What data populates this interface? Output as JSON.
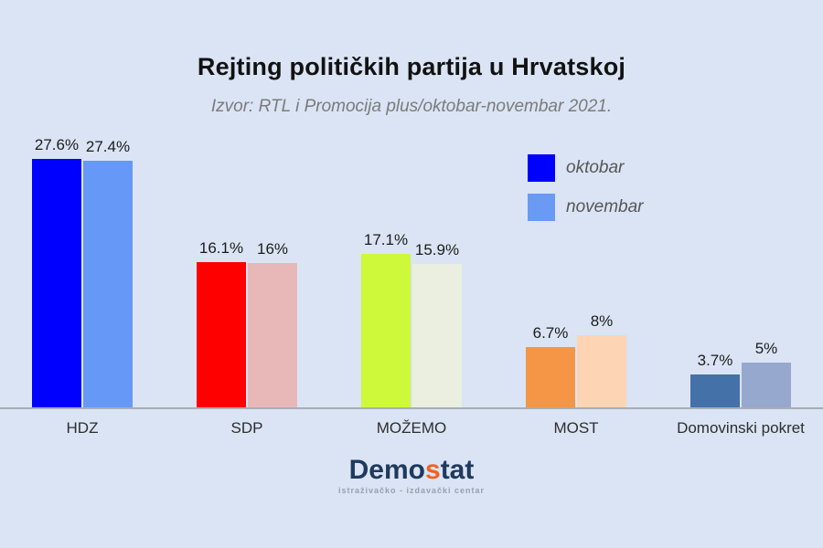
{
  "page": {
    "background_color": "#dae4f4",
    "axis_line_color": "#a8aeb6"
  },
  "chart_data": {
    "type": "bar",
    "title": "Rejting političkih partija u Hrvatskoj",
    "subtitle": "Izvor: RTL i Promocija plus/oktobar-novembar 2021.",
    "categories": [
      "HDZ",
      "SDP",
      "MOŽEMO",
      "MOST",
      "Domovinski pokret"
    ],
    "series": [
      {
        "name": "oktobar",
        "values": [
          27.6,
          16.1,
          17.1,
          6.7,
          3.7
        ],
        "value_labels": [
          "27.6%",
          "16.1%",
          "17.1%",
          "6.7%",
          "3.7%"
        ],
        "colors": [
          "#0000fe",
          "#fe0000",
          "#cdf93a",
          "#f49646",
          "#4472a8"
        ]
      },
      {
        "name": "novembar",
        "values": [
          27.4,
          16.0,
          15.9,
          8.0,
          5.0
        ],
        "value_labels": [
          "27.4%",
          "16%",
          "15.9%",
          "8%",
          "5%"
        ],
        "colors": [
          "#6699f7",
          "#e7b8b7",
          "#ebefdf",
          "#fdd5b4",
          "#97a8cf"
        ]
      }
    ],
    "legend": [
      {
        "label": "oktobar",
        "color": "#0000fe"
      },
      {
        "label": "novembar",
        "color": "#6b9af5"
      }
    ],
    "legend_position": "upper-right",
    "ylim": [
      0,
      29.5
    ],
    "grid": false,
    "xlabel": "",
    "ylabel": ""
  },
  "footer": {
    "logo": {
      "part1": "Demo",
      "accent": "s",
      "part2": "tat",
      "tagline": "istraživačko - izdavački  centar"
    }
  }
}
